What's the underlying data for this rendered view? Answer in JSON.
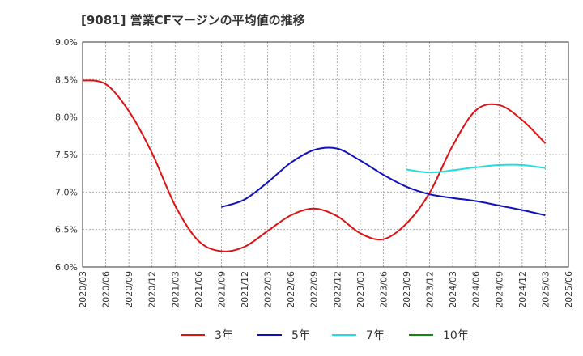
{
  "chart_data": {
    "type": "line",
    "title": "[9081]  営業CFマージンの平均値の推移",
    "xlabel": "",
    "ylabel": "",
    "ylim": [
      6.0,
      9.0
    ],
    "y_ticks": [
      "6.0%",
      "6.5%",
      "7.0%",
      "7.5%",
      "8.0%",
      "8.5%",
      "9.0%"
    ],
    "x_ticks": [
      "2020/03",
      "2020/06",
      "2020/09",
      "2020/12",
      "2021/03",
      "2021/06",
      "2021/09",
      "2021/12",
      "2022/03",
      "2022/06",
      "2022/09",
      "2022/12",
      "2023/03",
      "2023/06",
      "2023/09",
      "2023/12",
      "2024/03",
      "2024/06",
      "2024/09",
      "2024/12",
      "2025/03",
      "2025/06"
    ],
    "grid": true,
    "legend_position": "bottom",
    "series": [
      {
        "name": "3年",
        "color": "#dd1111",
        "x": [
          "2020/03",
          "2020/06",
          "2020/09",
          "2020/12",
          "2021/03",
          "2021/06",
          "2021/09",
          "2021/12",
          "2022/03",
          "2022/06",
          "2022/09",
          "2022/12",
          "2023/03",
          "2023/06",
          "2023/09",
          "2023/12",
          "2024/03",
          "2024/06",
          "2024/09",
          "2024/12",
          "2025/03"
        ],
        "values": [
          8.49,
          8.44,
          8.08,
          7.52,
          6.82,
          6.35,
          6.21,
          6.27,
          6.48,
          6.69,
          6.78,
          6.68,
          6.45,
          6.37,
          6.58,
          6.99,
          7.62,
          8.09,
          8.16,
          7.96,
          7.65
        ]
      },
      {
        "name": "5年",
        "color": "#1111bb",
        "x": [
          "2021/09",
          "2021/12",
          "2022/03",
          "2022/06",
          "2022/09",
          "2022/12",
          "2023/03",
          "2023/06",
          "2023/09",
          "2023/12",
          "2024/03",
          "2024/06",
          "2024/09",
          "2024/12",
          "2025/03"
        ],
        "values": [
          6.8,
          6.9,
          7.13,
          7.39,
          7.56,
          7.58,
          7.42,
          7.23,
          7.07,
          6.97,
          6.92,
          6.88,
          6.82,
          6.76,
          6.69
        ]
      },
      {
        "name": "7年",
        "color": "#22dddd",
        "x": [
          "2023/09",
          "2023/12",
          "2024/03",
          "2024/06",
          "2024/09",
          "2024/12",
          "2025/03"
        ],
        "values": [
          7.3,
          7.26,
          7.29,
          7.33,
          7.36,
          7.36,
          7.32
        ]
      },
      {
        "name": "10年",
        "color": "#118811",
        "x": [],
        "values": []
      }
    ]
  }
}
